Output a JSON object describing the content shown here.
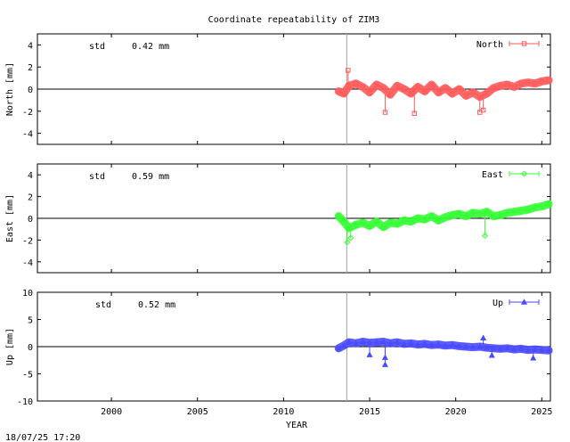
{
  "figure": {
    "title": "Coordinate repeatability of ZIM3",
    "xlabel": "YEAR",
    "timestamp": "18/07/25 17:20",
    "std_label": "std",
    "event_line_x": 2013.67,
    "colors": {
      "North": "#ff5a5a",
      "East": "#33ff33",
      "Up": "#4b4bff",
      "axis": "#000000",
      "event": "#a0a0a0"
    }
  },
  "chart_data": [
    {
      "type": "line",
      "panel": "North",
      "ylabel": "North [mm]",
      "std_value": "0.42 mm",
      "legend": "North",
      "legend_placement": "top-right",
      "marker": "square",
      "xlim": [
        1995.7,
        2025.5
      ],
      "ylim": [
        -5,
        5
      ],
      "x_ticks": [
        2000,
        2005,
        2010,
        2015,
        2020,
        2025
      ],
      "y_ticks": [
        -4,
        -2,
        0,
        2,
        4
      ],
      "x": [
        2013.2,
        2013.5,
        2013.8,
        2014.2,
        2014.6,
        2015.0,
        2015.4,
        2015.8,
        2016.2,
        2016.6,
        2017.0,
        2017.4,
        2017.8,
        2018.2,
        2018.6,
        2019.0,
        2019.4,
        2019.8,
        2020.2,
        2020.6,
        2021.0,
        2021.4,
        2021.8,
        2022.2,
        2022.6,
        2023.0,
        2023.4,
        2023.8,
        2024.2,
        2024.6,
        2025.0,
        2025.4
      ],
      "y": [
        -0.2,
        -0.4,
        0.3,
        0.5,
        0.2,
        -0.3,
        0.4,
        0.1,
        -0.5,
        0.3,
        0.0,
        -0.4,
        0.2,
        -0.2,
        0.4,
        -0.3,
        0.1,
        -0.4,
        0.0,
        -0.6,
        -0.3,
        -0.7,
        -0.4,
        0.1,
        0.3,
        0.4,
        0.2,
        0.5,
        0.6,
        0.5,
        0.7,
        0.8
      ],
      "outliers": [
        [
          2013.75,
          1.7
        ],
        [
          2015.9,
          -2.1
        ],
        [
          2017.6,
          -2.2
        ],
        [
          2021.4,
          -2.1
        ],
        [
          2021.6,
          -1.9
        ]
      ]
    },
    {
      "type": "line",
      "panel": "East",
      "ylabel": "East [mm]",
      "std_value": "0.59 mm",
      "legend": "East",
      "legend_placement": "top-right",
      "marker": "diamond",
      "xlim": [
        1995.7,
        2025.5
      ],
      "ylim": [
        -5,
        5
      ],
      "x_ticks": [
        2000,
        2005,
        2010,
        2015,
        2020,
        2025
      ],
      "y_ticks": [
        -4,
        -2,
        0,
        2,
        4
      ],
      "x": [
        2013.2,
        2013.5,
        2013.8,
        2014.2,
        2014.6,
        2015.0,
        2015.4,
        2015.8,
        2016.2,
        2016.6,
        2017.0,
        2017.4,
        2017.8,
        2018.2,
        2018.6,
        2019.0,
        2019.4,
        2019.8,
        2020.2,
        2020.6,
        2021.0,
        2021.4,
        2021.8,
        2022.2,
        2022.6,
        2023.0,
        2023.4,
        2023.8,
        2024.2,
        2024.6,
        2025.0,
        2025.4
      ],
      "y": [
        0.2,
        -0.3,
        -0.9,
        -0.6,
        -0.4,
        -0.7,
        -0.3,
        -0.8,
        -0.4,
        -0.5,
        -0.2,
        -0.3,
        0.0,
        -0.1,
        0.2,
        -0.2,
        0.1,
        0.3,
        0.4,
        0.2,
        0.5,
        0.4,
        0.6,
        0.2,
        0.3,
        0.5,
        0.6,
        0.7,
        0.8,
        1.0,
        1.1,
        1.3
      ],
      "outliers": [
        [
          2013.7,
          -2.2
        ],
        [
          2013.9,
          -1.8
        ],
        [
          2021.7,
          -1.6
        ]
      ]
    },
    {
      "type": "line",
      "panel": "Up",
      "ylabel": "Up [mm]",
      "std_value": "0.52 mm",
      "legend": "Up",
      "legend_placement": "top-right",
      "marker": "triangle",
      "xlim": [
        1995.7,
        2025.5
      ],
      "ylim": [
        -10,
        10
      ],
      "x_ticks": [
        2000,
        2005,
        2010,
        2015,
        2020,
        2025
      ],
      "y_ticks": [
        -10,
        -5,
        0,
        5,
        10
      ],
      "x": [
        2013.2,
        2013.5,
        2013.8,
        2014.2,
        2014.6,
        2015.0,
        2015.4,
        2015.8,
        2016.2,
        2016.6,
        2017.0,
        2017.4,
        2017.8,
        2018.2,
        2018.6,
        2019.0,
        2019.4,
        2019.8,
        2020.2,
        2020.6,
        2021.0,
        2021.4,
        2021.8,
        2022.2,
        2022.6,
        2023.0,
        2023.4,
        2023.8,
        2024.2,
        2024.6,
        2025.0,
        2025.4
      ],
      "y": [
        -0.3,
        0.2,
        0.8,
        0.6,
        0.9,
        0.7,
        0.8,
        0.9,
        0.6,
        0.8,
        0.5,
        0.6,
        0.4,
        0.5,
        0.3,
        0.4,
        0.2,
        0.3,
        0.1,
        0.0,
        -0.1,
        0.0,
        -0.2,
        -0.3,
        -0.4,
        -0.3,
        -0.5,
        -0.4,
        -0.6,
        -0.5,
        -0.6,
        -0.7
      ],
      "outliers": [
        [
          2015.0,
          -1.5
        ],
        [
          2015.9,
          -2.0
        ],
        [
          2015.9,
          -3.3
        ],
        [
          2021.6,
          1.6
        ],
        [
          2022.1,
          -1.6
        ],
        [
          2024.5,
          -2.1
        ]
      ]
    }
  ]
}
